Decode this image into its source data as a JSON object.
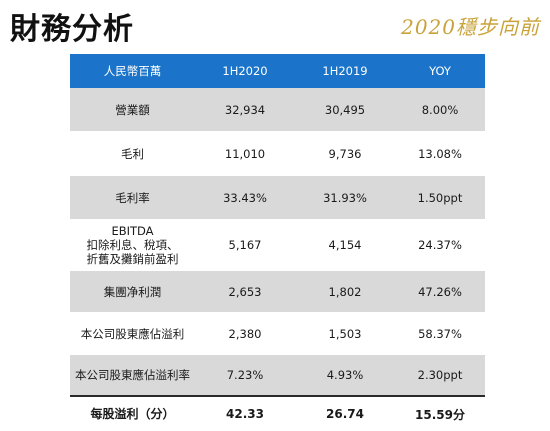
{
  "header": {
    "title": "財務分析",
    "slogan": "2020穩步向前"
  },
  "table": {
    "columns": [
      "人民幣百萬",
      "1H2020",
      "1H2019",
      "YOY"
    ],
    "rows": [
      {
        "label_lines": [
          "營業額"
        ],
        "h2020": "32,934",
        "h2019": "30,495",
        "yoy": "8.00%"
      },
      {
        "label_lines": [
          "毛利"
        ],
        "h2020": "11,010",
        "h2019": "9,736",
        "yoy": "13.08%"
      },
      {
        "label_lines": [
          "毛利率"
        ],
        "h2020": "33.43%",
        "h2019": "31.93%",
        "yoy": "1.50ppt"
      },
      {
        "label_lines": [
          "EBITDA",
          "扣除利息、稅項、",
          "折舊及攤銷前盈利"
        ],
        "h2020": "5,167",
        "h2019": "4,154",
        "yoy": "24.37%"
      },
      {
        "label_lines": [
          "集團净利潤"
        ],
        "h2020": "2,653",
        "h2019": "1,802",
        "yoy": "47.26%"
      },
      {
        "label_lines": [
          "本公司股東應佔溢利"
        ],
        "h2020": "2,380",
        "h2019": "1,503",
        "yoy": "58.37%"
      },
      {
        "label_lines": [
          "本公司股東應佔溢利率"
        ],
        "h2020": "7.23%",
        "h2019": "4.93%",
        "yoy": "2.30ppt"
      },
      {
        "label_lines": [
          "每股溢利（分）"
        ],
        "h2020": "42.33",
        "h2019": "26.74",
        "yoy": "15.59分"
      }
    ]
  }
}
